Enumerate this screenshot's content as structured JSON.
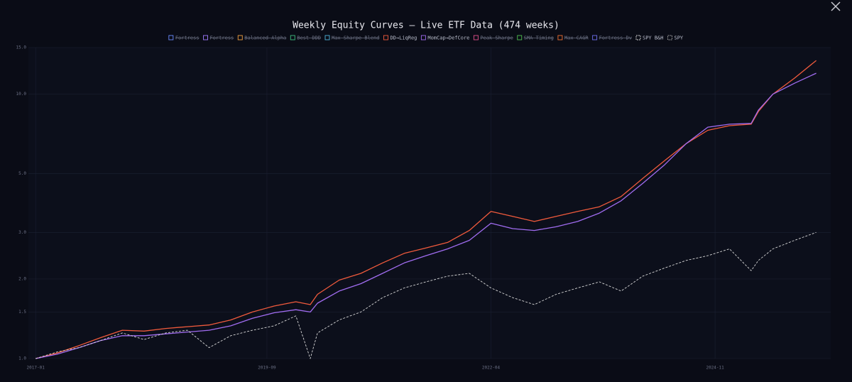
{
  "chart_data": {
    "type": "line",
    "title": "Weekly Equity Curves — Live ETF Data (474 weeks)",
    "log_y": true,
    "grid": true,
    "legend": "top",
    "x": [
      "2017-01",
      "2017-04",
      "2017-07",
      "2017-10",
      "2018-01",
      "2018-04",
      "2018-07",
      "2018-10",
      "2019-01",
      "2019-04",
      "2019-07",
      "2019-10",
      "2020-01",
      "2020-03",
      "2020-04",
      "2020-07",
      "2020-10",
      "2021-01",
      "2021-04",
      "2021-07",
      "2021-10",
      "2022-01",
      "2022-04",
      "2022-07",
      "2022-10",
      "2023-01",
      "2023-04",
      "2023-07",
      "2023-10",
      "2024-01",
      "2024-04",
      "2024-07",
      "2024-10",
      "2025-01",
      "2025-04",
      "2025-05",
      "2025-07",
      "2025-10",
      "2026-01"
    ],
    "xlim": [
      "2016-12",
      "2026-03"
    ],
    "xticks": [
      "2017-01",
      "2019-09",
      "2022-04",
      "2024-11"
    ],
    "ylim": [
      1,
      15
    ],
    "yticks": [
      {
        "value": 1,
        "label": "1.0"
      },
      1.5,
      {
        "value": 2,
        "label": "2.0"
      },
      {
        "value": 3,
        "label": "3.0"
      },
      {
        "value": 5,
        "label": "5.0"
      },
      {
        "value": 10,
        "label": "10.0"
      },
      {
        "value": 15,
        "label": "15.0"
      }
    ],
    "series": [
      {
        "name": "Fortress",
        "color": "#6b8cff",
        "hidden": true
      },
      {
        "name": "Fortress",
        "color": "#a07cff",
        "hidden": true
      },
      {
        "name": "Balanced Alpha",
        "color": "#f0a040",
        "hidden": true
      },
      {
        "name": "Best DDD",
        "color": "#3fbf7f",
        "hidden": true
      },
      {
        "name": "Max Sharpe Blend",
        "color": "#4fb3d9",
        "hidden": true
      },
      {
        "name": "DD→LiqReg",
        "color": "#f05a3c",
        "hidden": false,
        "values": [
          1,
          1.05,
          1.12,
          1.2,
          1.28,
          1.27,
          1.3,
          1.32,
          1.34,
          1.4,
          1.5,
          1.58,
          1.64,
          1.6,
          1.75,
          1.98,
          2.1,
          2.3,
          2.5,
          2.62,
          2.75,
          3.05,
          3.6,
          3.45,
          3.3,
          3.45,
          3.6,
          3.75,
          4.1,
          4.8,
          5.6,
          6.5,
          7.3,
          7.6,
          7.7,
          8.6,
          10,
          11.5,
          13.4
        ]
      },
      {
        "name": "MomCap→DefCore",
        "color": "#a06cf0",
        "hidden": false,
        "values": [
          1,
          1.04,
          1.1,
          1.17,
          1.22,
          1.22,
          1.24,
          1.26,
          1.28,
          1.33,
          1.42,
          1.49,
          1.53,
          1.5,
          1.62,
          1.8,
          1.92,
          2.1,
          2.3,
          2.45,
          2.6,
          2.8,
          3.25,
          3.1,
          3.05,
          3.15,
          3.3,
          3.55,
          3.95,
          4.6,
          5.4,
          6.5,
          7.5,
          7.7,
          7.75,
          8.7,
          10,
          11,
          12
        ]
      },
      {
        "name": "Peak Sharpe",
        "color": "#e0508a",
        "hidden": true
      },
      {
        "name": "SMA Timing",
        "color": "#50c050",
        "hidden": true
      },
      {
        "name": "Max CAGR",
        "color": "#f07030",
        "hidden": true
      },
      {
        "name": "Fortress Dv",
        "color": "#7070f0",
        "hidden": true
      },
      {
        "name": "SPY B&H",
        "color": "#d8d8d8",
        "hidden": false,
        "dashed": true,
        "values": [
          1,
          1.06,
          1.1,
          1.17,
          1.25,
          1.18,
          1.25,
          1.28,
          1.1,
          1.22,
          1.28,
          1.33,
          1.45,
          1,
          1.25,
          1.4,
          1.5,
          1.7,
          1.85,
          1.95,
          2.05,
          2.1,
          1.85,
          1.7,
          1.6,
          1.75,
          1.85,
          1.95,
          1.8,
          2.05,
          2.2,
          2.35,
          2.45,
          2.6,
          2.15,
          2.35,
          2.6,
          2.8,
          3
        ]
      },
      {
        "name": "SPY",
        "color": "#9a9a9a",
        "hidden": false,
        "dashed": true
      }
    ]
  }
}
